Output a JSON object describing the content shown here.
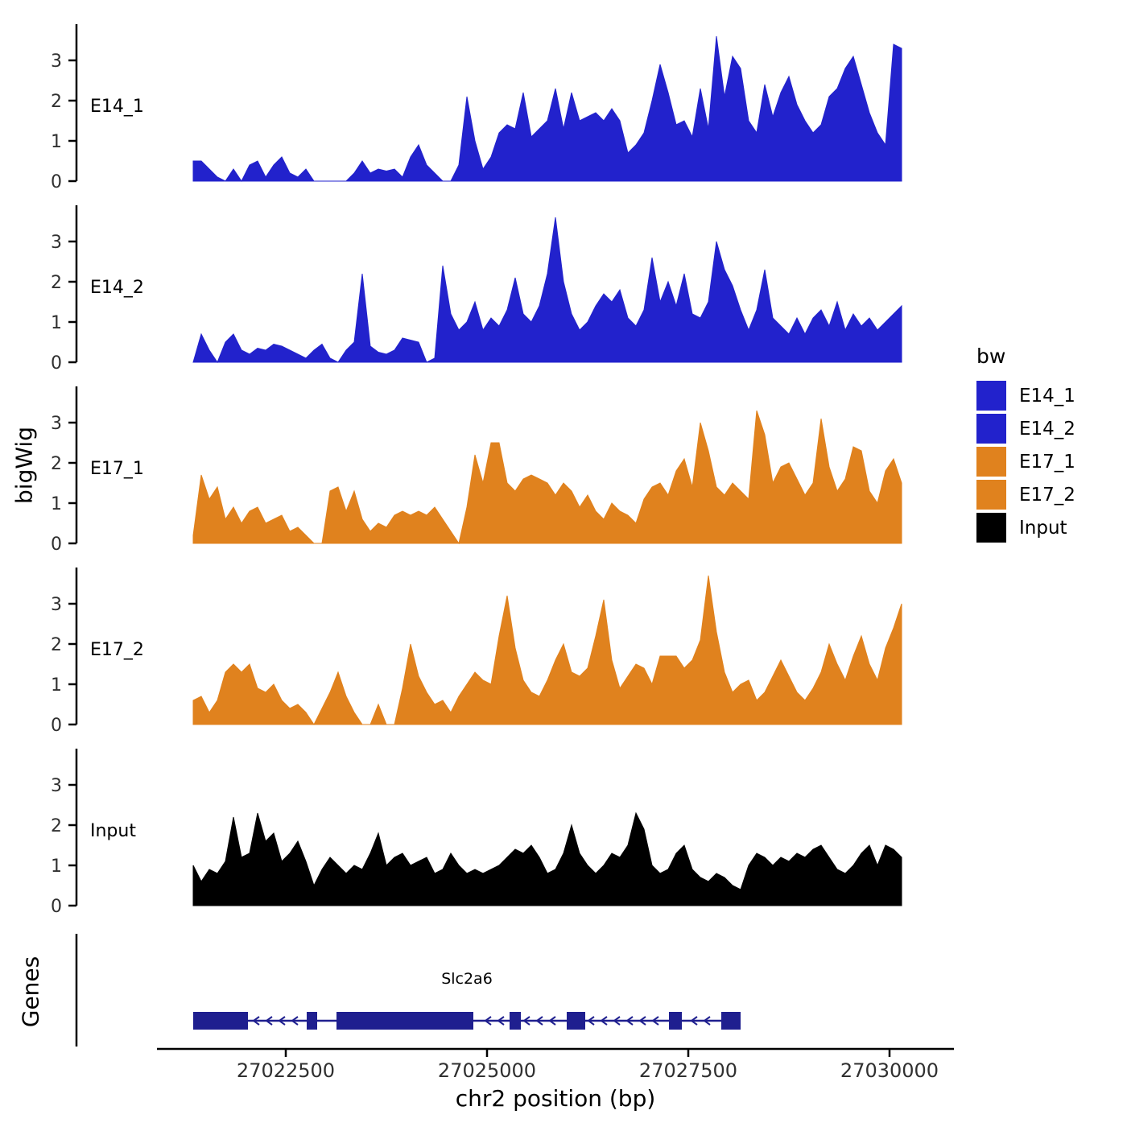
{
  "figure": {
    "y_axis_title": "bigWig",
    "x_axis_title": "chr2 position (bp)",
    "genes_panel_title": "Genes"
  },
  "chart_data": {
    "type": "area",
    "subtype": "genome-coverage-tracks",
    "title": "",
    "xlabel": "chr2 position (bp)",
    "ylabel": "bigWig",
    "x_start": 27021350,
    "x_step": 100,
    "x_tick_values": [
      27022500,
      27025000,
      27027500,
      27030000
    ],
    "y_ticks": [
      0,
      1,
      2,
      3
    ],
    "ylim": [
      0,
      3.9
    ],
    "xlim": [
      27020900,
      27030800
    ],
    "grid": false,
    "legend_position": "right",
    "series": [
      {
        "name": "E14_1",
        "color": "#2222CC",
        "values": [
          0.5,
          0.5,
          0.3,
          0.1,
          0,
          0.3,
          0,
          0.4,
          0.5,
          0.1,
          0.4,
          0.6,
          0.2,
          0.1,
          0.3,
          0,
          0,
          0,
          0,
          0,
          0.2,
          0.5,
          0.2,
          0.3,
          0.25,
          0.3,
          0.1,
          0.6,
          0.9,
          0.4,
          0.2,
          0,
          0,
          0.4,
          2.1,
          1.0,
          0.3,
          0.6,
          1.2,
          1.4,
          1.3,
          2.2,
          1.1,
          1.3,
          1.5,
          2.3,
          1.3,
          2.2,
          1.5,
          1.6,
          1.7,
          1.5,
          1.8,
          1.5,
          0.7,
          0.9,
          1.2,
          2.0,
          2.9,
          2.2,
          1.4,
          1.5,
          1.1,
          2.3,
          1.3,
          3.6,
          2.1,
          3.1,
          2.8,
          1.5,
          1.2,
          2.4,
          1.6,
          2.2,
          2.6,
          1.9,
          1.5,
          1.2,
          1.4,
          2.1,
          2.3,
          2.8,
          3.1,
          2.4,
          1.7,
          1.2,
          0.9,
          3.4,
          3.3
        ]
      },
      {
        "name": "E14_2",
        "color": "#2222CC",
        "values": [
          0,
          0.7,
          0.3,
          0,
          0.5,
          0.7,
          0.3,
          0.2,
          0.35,
          0.3,
          0.45,
          0.4,
          0.3,
          0.2,
          0.1,
          0.3,
          0.45,
          0.1,
          0,
          0.3,
          0.5,
          2.2,
          0.4,
          0.25,
          0.2,
          0.3,
          0.6,
          0.55,
          0.5,
          0,
          0.1,
          2.4,
          1.2,
          0.8,
          1.0,
          1.5,
          0.8,
          1.1,
          0.9,
          1.3,
          2.1,
          1.2,
          1.0,
          1.4,
          2.2,
          3.6,
          2.0,
          1.2,
          0.8,
          1.0,
          1.4,
          1.7,
          1.5,
          1.8,
          1.1,
          0.9,
          1.3,
          2.6,
          1.5,
          2.0,
          1.4,
          2.2,
          1.2,
          1.1,
          1.5,
          3.0,
          2.3,
          1.9,
          1.3,
          0.8,
          1.3,
          2.3,
          1.1,
          0.9,
          0.7,
          1.1,
          0.7,
          1.1,
          1.3,
          0.9,
          1.5,
          0.8,
          1.2,
          0.9,
          1.1,
          0.8,
          1.0,
          1.2,
          1.4
        ]
      },
      {
        "name": "E17_1",
        "color": "#E0821E",
        "values": [
          0.2,
          1.7,
          1.1,
          1.4,
          0.6,
          0.9,
          0.5,
          0.8,
          0.9,
          0.5,
          0.6,
          0.7,
          0.3,
          0.4,
          0.2,
          0,
          0,
          1.3,
          1.4,
          0.8,
          1.3,
          0.6,
          0.3,
          0.5,
          0.4,
          0.7,
          0.8,
          0.7,
          0.8,
          0.7,
          0.9,
          0.6,
          0.3,
          0,
          0.9,
          2.2,
          1.5,
          2.5,
          2.5,
          1.5,
          1.3,
          1.6,
          1.7,
          1.6,
          1.5,
          1.2,
          1.5,
          1.3,
          0.9,
          1.2,
          0.8,
          0.6,
          1.0,
          0.8,
          0.7,
          0.5,
          1.1,
          1.4,
          1.5,
          1.2,
          1.8,
          2.1,
          1.4,
          3.0,
          2.3,
          1.4,
          1.2,
          1.5,
          1.3,
          1.1,
          3.3,
          2.7,
          1.5,
          1.9,
          2.0,
          1.6,
          1.2,
          1.5,
          3.1,
          1.9,
          1.3,
          1.6,
          2.4,
          2.3,
          1.3,
          1.0,
          1.8,
          2.1,
          1.5
        ]
      },
      {
        "name": "E17_2",
        "color": "#E0821E",
        "values": [
          0.6,
          0.7,
          0.3,
          0.6,
          1.3,
          1.5,
          1.3,
          1.5,
          0.9,
          0.8,
          1.0,
          0.6,
          0.4,
          0.5,
          0.3,
          0,
          0.4,
          0.8,
          1.3,
          0.7,
          0.3,
          0,
          0,
          0.5,
          0,
          0,
          0.9,
          2.0,
          1.2,
          0.8,
          0.5,
          0.6,
          0.3,
          0.7,
          1.0,
          1.3,
          1.1,
          1.0,
          2.2,
          3.2,
          1.9,
          1.1,
          0.8,
          0.7,
          1.1,
          1.6,
          2.0,
          1.3,
          1.2,
          1.4,
          2.2,
          3.1,
          1.6,
          0.9,
          1.2,
          1.5,
          1.4,
          1.0,
          1.7,
          1.7,
          1.7,
          1.4,
          1.6,
          2.1,
          3.7,
          2.3,
          1.3,
          0.8,
          1.0,
          1.1,
          0.6,
          0.8,
          1.2,
          1.6,
          1.2,
          0.8,
          0.6,
          0.9,
          1.3,
          2.0,
          1.5,
          1.1,
          1.7,
          2.2,
          1.5,
          1.1,
          1.9,
          2.4,
          3.0
        ]
      },
      {
        "name": "Input",
        "color": "#000000",
        "values": [
          1.0,
          0.6,
          0.9,
          0.8,
          1.1,
          2.2,
          1.2,
          1.3,
          2.3,
          1.6,
          1.8,
          1.1,
          1.3,
          1.6,
          1.1,
          0.5,
          0.9,
          1.2,
          1.0,
          0.8,
          1.0,
          0.9,
          1.3,
          1.8,
          1.0,
          1.2,
          1.3,
          1.0,
          1.1,
          1.2,
          0.8,
          0.9,
          1.3,
          1.0,
          0.8,
          0.9,
          0.8,
          0.9,
          1.0,
          1.2,
          1.4,
          1.3,
          1.5,
          1.2,
          0.8,
          0.9,
          1.3,
          2.0,
          1.3,
          1.0,
          0.8,
          1.0,
          1.3,
          1.2,
          1.5,
          2.3,
          1.9,
          1.0,
          0.8,
          0.9,
          1.3,
          1.5,
          0.9,
          0.7,
          0.6,
          0.8,
          0.7,
          0.5,
          0.4,
          1.0,
          1.3,
          1.2,
          1.0,
          1.2,
          1.1,
          1.3,
          1.2,
          1.4,
          1.5,
          1.2,
          0.9,
          0.8,
          1.0,
          1.3,
          1.5,
          1.0,
          1.5,
          1.4,
          1.2
        ]
      }
    ],
    "genes": {
      "panel_label": "Genes",
      "label": "Slc2a6",
      "strand": "-",
      "color": "#1F1F8F",
      "start": 27021350,
      "end": 27028150,
      "exons": [
        [
          27021350,
          27022030
        ],
        [
          27022760,
          27022890
        ],
        [
          27023130,
          27024830
        ],
        [
          27025280,
          27025420
        ],
        [
          27025990,
          27026220
        ],
        [
          27027260,
          27027420
        ],
        [
          27027910,
          27028150
        ]
      ]
    },
    "legend": {
      "title": "bw",
      "entries": [
        {
          "label": "E14_1",
          "color": "#2222CC"
        },
        {
          "label": "E14_2",
          "color": "#2222CC"
        },
        {
          "label": "E17_1",
          "color": "#E0821E"
        },
        {
          "label": "E17_2",
          "color": "#E0821E"
        },
        {
          "label": "Input",
          "color": "#000000"
        }
      ]
    }
  }
}
